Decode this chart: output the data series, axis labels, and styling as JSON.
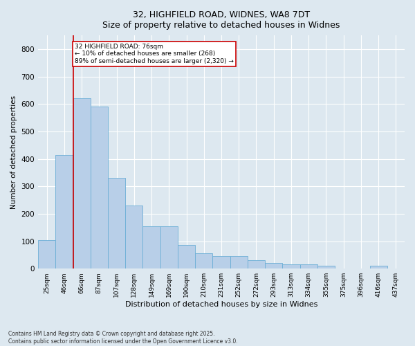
{
  "title_line1": "32, HIGHFIELD ROAD, WIDNES, WA8 7DT",
  "title_line2": "Size of property relative to detached houses in Widnes",
  "xlabel": "Distribution of detached houses by size in Widnes",
  "ylabel": "Number of detached properties",
  "footnote_line1": "Contains HM Land Registry data © Crown copyright and database right 2025.",
  "footnote_line2": "Contains public sector information licensed under the Open Government Licence v3.0.",
  "annotation_line1": "32 HIGHFIELD ROAD: 76sqm",
  "annotation_line2": "← 10% of detached houses are smaller (268)",
  "annotation_line3": "89% of semi-detached houses are larger (2,320) →",
  "bar_color": "#b8cfe8",
  "bar_edge_color": "#6baed6",
  "redline_color": "#cc0000",
  "annotation_box_edge": "#cc0000",
  "background_color": "#dde8f0",
  "categories": [
    "25sqm",
    "46sqm",
    "66sqm",
    "87sqm",
    "107sqm",
    "128sqm",
    "149sqm",
    "169sqm",
    "190sqm",
    "210sqm",
    "231sqm",
    "252sqm",
    "272sqm",
    "293sqm",
    "313sqm",
    "334sqm",
    "355sqm",
    "375sqm",
    "396sqm",
    "416sqm",
    "437sqm"
  ],
  "values": [
    105,
    415,
    620,
    590,
    330,
    230,
    155,
    155,
    85,
    55,
    45,
    45,
    30,
    20,
    15,
    15,
    10,
    0,
    0,
    10,
    0
  ],
  "ylim": [
    0,
    850
  ],
  "yticks": [
    0,
    100,
    200,
    300,
    400,
    500,
    600,
    700,
    800
  ],
  "redline_x": 1.5,
  "figsize": [
    6.0,
    5.0
  ],
  "dpi": 100
}
